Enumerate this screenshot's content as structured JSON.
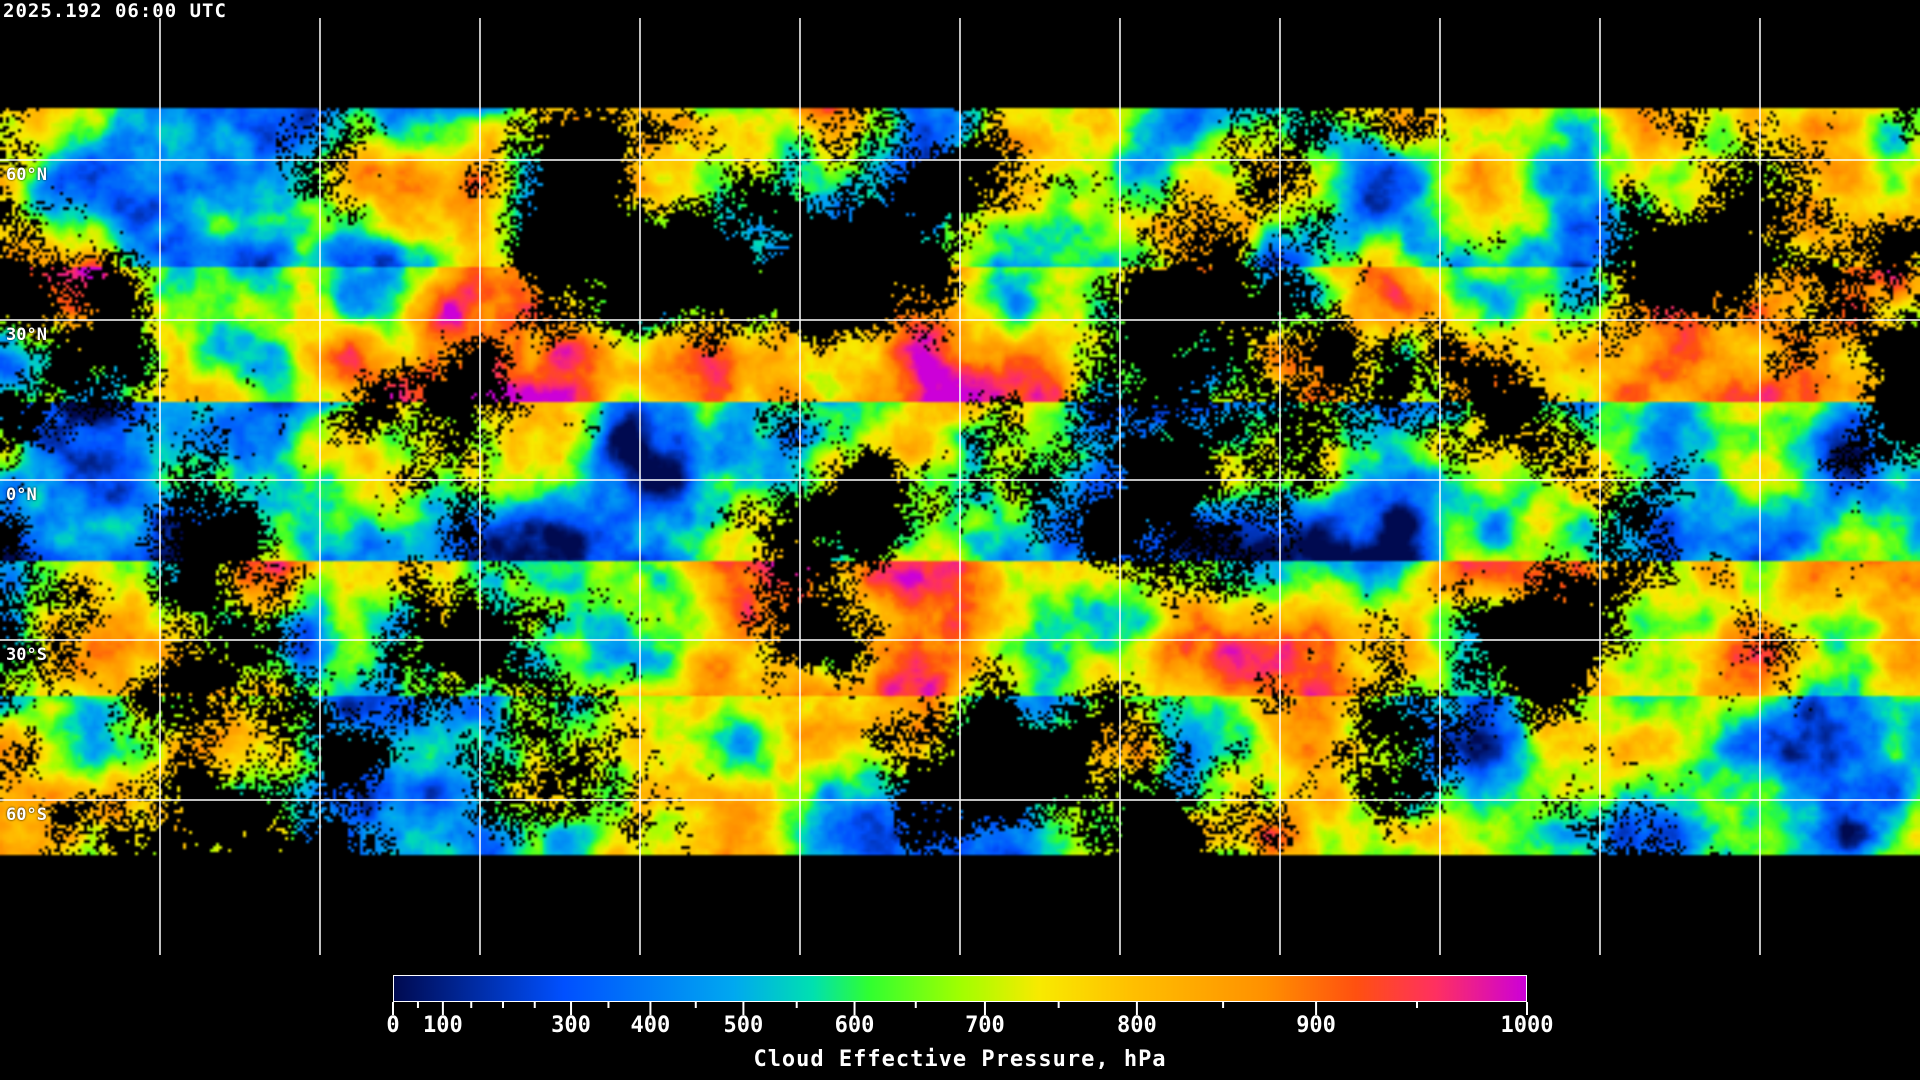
{
  "title": "2025.192 06:00 UTC",
  "map": {
    "projection": "equirectangular",
    "grid_spacing_deg": 30,
    "lat_labels": [
      "60°N",
      "30°N",
      "0°N",
      "30°S",
      "60°S"
    ],
    "lat_values": [
      60,
      30,
      0,
      -30,
      -60
    ],
    "coverage_lat": [
      70,
      -70
    ],
    "no_data_color": "#000000",
    "grid_color": "#ffffff",
    "coastline_color": "#ffffff"
  },
  "colorbar": {
    "title": "Cloud Effective Pressure, hPa",
    "range": [
      0,
      1000
    ],
    "major_ticks": [
      {
        "value": 0,
        "label": "0",
        "pos": 0
      },
      {
        "value": 100,
        "label": "100",
        "pos": 0.044
      },
      {
        "value": 300,
        "label": "300",
        "pos": 0.157
      },
      {
        "value": 400,
        "label": "400",
        "pos": 0.227
      },
      {
        "value": 500,
        "label": "500",
        "pos": 0.309
      },
      {
        "value": 600,
        "label": "600",
        "pos": 0.407
      },
      {
        "value": 700,
        "label": "700",
        "pos": 0.522
      },
      {
        "value": 800,
        "label": "800",
        "pos": 0.656
      },
      {
        "value": 900,
        "label": "900",
        "pos": 0.814
      },
      {
        "value": 1000,
        "label": "1000",
        "pos": 1
      }
    ],
    "minor_ticks": [
      0.022,
      0.069,
      0.097,
      0.125,
      0.19,
      0.267,
      0.356,
      0.461,
      0.587,
      0.732,
      0.903
    ],
    "color_stops": [
      [
        0,
        "#000a50"
      ],
      [
        0.15,
        "#0050ff"
      ],
      [
        0.3,
        "#00a8f0"
      ],
      [
        0.37,
        "#00e0b0"
      ],
      [
        0.42,
        "#30ff30"
      ],
      [
        0.5,
        "#a0ff00"
      ],
      [
        0.57,
        "#f8ea00"
      ],
      [
        0.65,
        "#ffc000"
      ],
      [
        0.77,
        "#ff9000"
      ],
      [
        0.85,
        "#ff5010"
      ],
      [
        0.92,
        "#ff3060"
      ],
      [
        1,
        "#cc00d8"
      ]
    ]
  }
}
